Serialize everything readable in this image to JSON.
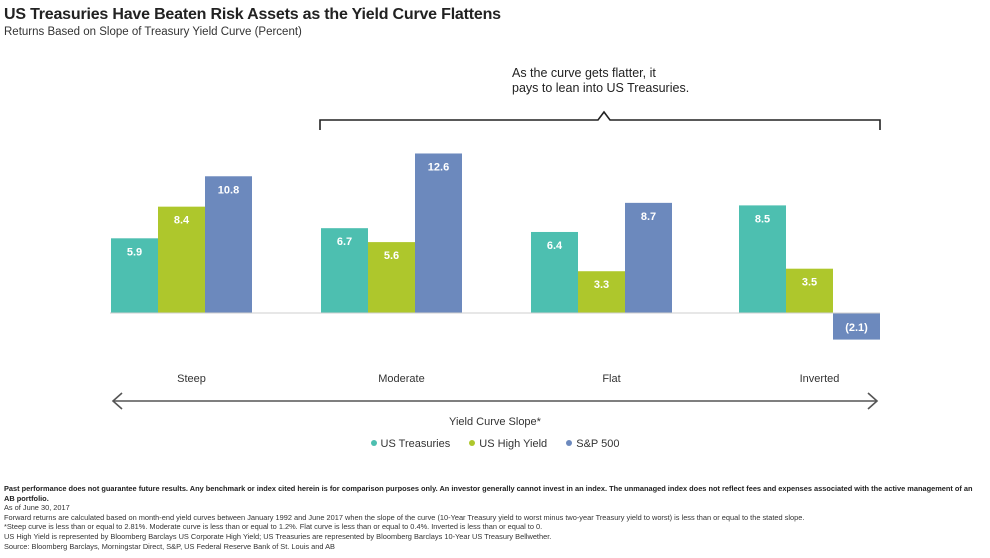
{
  "title": "US Treasuries Have Beaten Risk Assets as the Yield Curve Flattens",
  "subtitle": "Returns Based on Slope of Treasury Yield Curve (Percent)",
  "annotation": {
    "line1": "As the curve gets flatter, it",
    "line2": "pays to lean into US Treasuries."
  },
  "colors": {
    "us_treasuries": "#4dbfb0",
    "us_high_yield": "#aec72c",
    "sp500": "#6c89bd",
    "label_text": "#ffffff",
    "axis": "#555555"
  },
  "chart_data": {
    "type": "bar",
    "title": "US Treasuries Have Beaten Risk Assets as the Yield Curve Flattens",
    "subtitle": "Returns Based on Slope of Treasury Yield Curve (Percent)",
    "xlabel": "Yield Curve Slope*",
    "ylabel": "",
    "categories": [
      "Steep",
      "Moderate",
      "Flat",
      "Inverted"
    ],
    "series": [
      {
        "name": "US Treasuries",
        "values": [
          5.9,
          6.7,
          6.4,
          8.5
        ],
        "labels": [
          "5.9",
          "6.7",
          "6.4",
          "8.5"
        ]
      },
      {
        "name": "US High Yield",
        "values": [
          8.4,
          5.6,
          3.3,
          3.5
        ],
        "labels": [
          "8.4",
          "5.6",
          "3.3",
          "3.5"
        ]
      },
      {
        "name": "S&P 500",
        "values": [
          10.8,
          12.6,
          8.7,
          -2.1
        ],
        "labels": [
          "10.8",
          "12.6",
          "8.7",
          "(2.1)"
        ]
      }
    ],
    "ylim": [
      -3,
      13
    ],
    "grid": false,
    "legend": "bottom-center"
  },
  "legend": {
    "items": [
      "US Treasuries",
      "US High Yield",
      "S&P 500"
    ]
  },
  "footer": {
    "disclaimer": "Past performance does not guarantee future results. Any benchmark or index cited herein is for comparison purposes only.  An investor generally cannot invest in an index. The unmanaged index does not reflect fees and expenses associated with the active management of an AB portfolio.",
    "as_of": "As of June 30, 2017",
    "note1": "Forward returns are calculated based on month-end yield curves between January 1992 and June 2017 when the slope of the curve (10-Year Treasury yield to worst minus two-year Treasury yield to worst) is less than or equal to the stated slope.",
    "note2": "*Steep curve is less than or equal to 2.81%. Moderate curve is less than or equal to 1.2%. Flat curve is less than or equal to 0.4%. Inverted is less than or equal to 0.",
    "note3": "US High Yield is represented by Bloomberg Barclays US Corporate High Yield; US Treasuries are represented by Bloomberg Barclays 10-Year US Treasury Bellwether.",
    "source": "Source: Bloomberg Barclays, Morningstar Direct, S&P, US Federal Reserve Bank of St. Louis and AB"
  }
}
